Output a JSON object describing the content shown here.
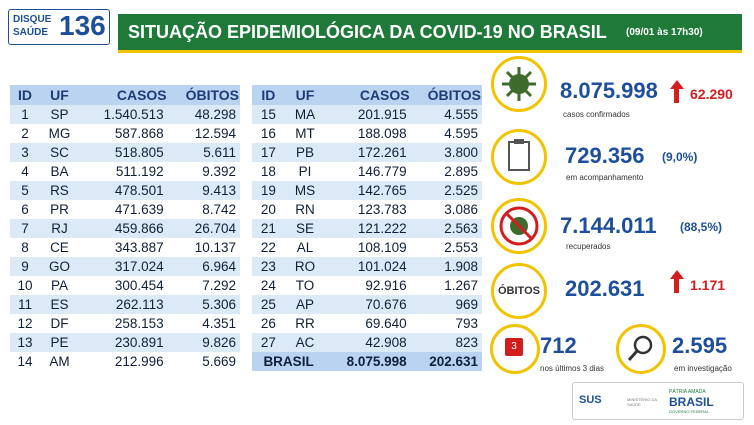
{
  "header": {
    "logo_top": "DISQUE",
    "logo_bottom": "SAÚDE",
    "logo_number": "136",
    "title": "SITUAÇÃO EPIDEMIOLÓGICA DA COVID-19 NO BRASIL",
    "date": "(09/01 às 17h30)"
  },
  "table_left": {
    "columns": [
      "ID",
      "UF",
      "CASOS",
      "ÓBITOS"
    ],
    "rows": [
      [
        "1",
        "SP",
        "1.540.513",
        "48.298"
      ],
      [
        "2",
        "MG",
        "587.868",
        "12.594"
      ],
      [
        "3",
        "SC",
        "518.805",
        "5.611"
      ],
      [
        "4",
        "BA",
        "511.192",
        "9.392"
      ],
      [
        "5",
        "RS",
        "478.501",
        "9.413"
      ],
      [
        "6",
        "PR",
        "471.639",
        "8.742"
      ],
      [
        "7",
        "RJ",
        "459.866",
        "26.704"
      ],
      [
        "8",
        "CE",
        "343.887",
        "10.137"
      ],
      [
        "9",
        "GO",
        "317.024",
        "6.964"
      ],
      [
        "10",
        "PA",
        "300.454",
        "7.292"
      ],
      [
        "11",
        "ES",
        "262.113",
        "5.306"
      ],
      [
        "12",
        "DF",
        "258.153",
        "4.351"
      ],
      [
        "13",
        "PE",
        "230.891",
        "9.826"
      ],
      [
        "14",
        "AM",
        "212.996",
        "5.669"
      ]
    ]
  },
  "table_right": {
    "columns": [
      "ID",
      "UF",
      "CASOS",
      "ÓBITOS"
    ],
    "rows": [
      [
        "15",
        "MA",
        "201.915",
        "4.555"
      ],
      [
        "16",
        "MT",
        "188.098",
        "4.595"
      ],
      [
        "17",
        "PB",
        "172.261",
        "3.800"
      ],
      [
        "18",
        "PI",
        "146.779",
        "2.895"
      ],
      [
        "19",
        "MS",
        "142.765",
        "2.525"
      ],
      [
        "20",
        "RN",
        "123.783",
        "3.086"
      ],
      [
        "21",
        "SE",
        "121.222",
        "2.563"
      ],
      [
        "22",
        "AL",
        "108.109",
        "2.553"
      ],
      [
        "23",
        "RO",
        "101.024",
        "1.908"
      ],
      [
        "24",
        "TO",
        "92.916",
        "1.267"
      ],
      [
        "25",
        "AP",
        "70.676",
        "969"
      ],
      [
        "26",
        "RR",
        "69.640",
        "793"
      ],
      [
        "27",
        "AC",
        "42.908",
        "823"
      ]
    ],
    "total": [
      "BRASIL",
      "8.075.998",
      "202.631"
    ]
  },
  "stats": {
    "confirmed": {
      "value": "8.075.998",
      "increase": "62.290",
      "label": "casos confirmados"
    },
    "monitoring": {
      "value": "729.356",
      "percent": "(9,0%)",
      "label": "em acompanhamento"
    },
    "recovered": {
      "value": "7.144.011",
      "percent": "(88,5%)",
      "label": "recuperados"
    },
    "deaths": {
      "badge": "ÓBITOS",
      "value": "202.631",
      "increase": "1.171"
    },
    "recent": {
      "icon": "3",
      "value": "712",
      "label": "nos últimos 3 dias"
    },
    "investigation": {
      "value": "2.595",
      "label": "em investigação"
    }
  },
  "footer": {
    "sus": "SUS",
    "ministry": "MINISTÉRIO DA SAÚDE",
    "motto": "PÁTRIA AMADA",
    "country": "BRASIL",
    "government": "GOVERNO FEDERAL"
  }
}
